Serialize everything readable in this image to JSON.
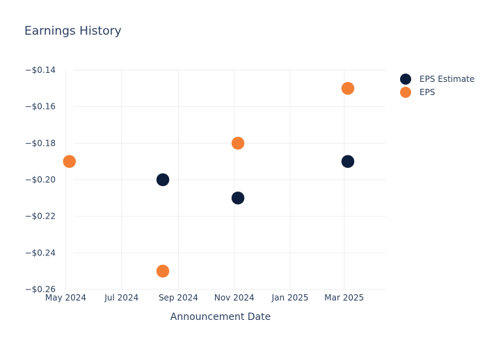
{
  "chart_data": {
    "type": "scatter",
    "title": "Earnings History",
    "xlabel": "Announcement Date",
    "ylabel": "",
    "x_ticks": [
      {
        "date": "2024-05-01",
        "label": "May 2024"
      },
      {
        "date": "2024-07-01",
        "label": "Jul 2024"
      },
      {
        "date": "2024-09-01",
        "label": "Sep 2024"
      },
      {
        "date": "2024-11-01",
        "label": "Nov 2024"
      },
      {
        "date": "2025-01-01",
        "label": "Jan 2025"
      },
      {
        "date": "2025-03-01",
        "label": "Mar 2025"
      }
    ],
    "xlim": [
      "2024-04-20",
      "2025-04-15"
    ],
    "y_ticks": [
      {
        "value": -0.14,
        "label": "−$0.14"
      },
      {
        "value": -0.16,
        "label": "−$0.16"
      },
      {
        "value": -0.18,
        "label": "−$0.18"
      },
      {
        "value": -0.2,
        "label": "−$0.20"
      },
      {
        "value": -0.22,
        "label": "−$0.22"
      },
      {
        "value": -0.24,
        "label": "−$0.24"
      },
      {
        "value": -0.26,
        "label": "−$0.26"
      }
    ],
    "ylim": [
      -0.26,
      -0.14
    ],
    "grid": true,
    "legend_position": "top-right",
    "series": [
      {
        "name": "EPS Estimate",
        "color": "#0c1e3c",
        "points": [
          {
            "x": "2024-05-05",
            "y": -0.19
          },
          {
            "x": "2024-08-15",
            "y": -0.2
          },
          {
            "x": "2024-11-05",
            "y": -0.21
          },
          {
            "x": "2025-03-05",
            "y": -0.19
          }
        ]
      },
      {
        "name": "EPS",
        "color": "#f47f34",
        "points": [
          {
            "x": "2024-05-05",
            "y": -0.19
          },
          {
            "x": "2024-08-15",
            "y": -0.25
          },
          {
            "x": "2024-11-05",
            "y": -0.18
          },
          {
            "x": "2025-03-05",
            "y": -0.15
          }
        ]
      }
    ]
  }
}
